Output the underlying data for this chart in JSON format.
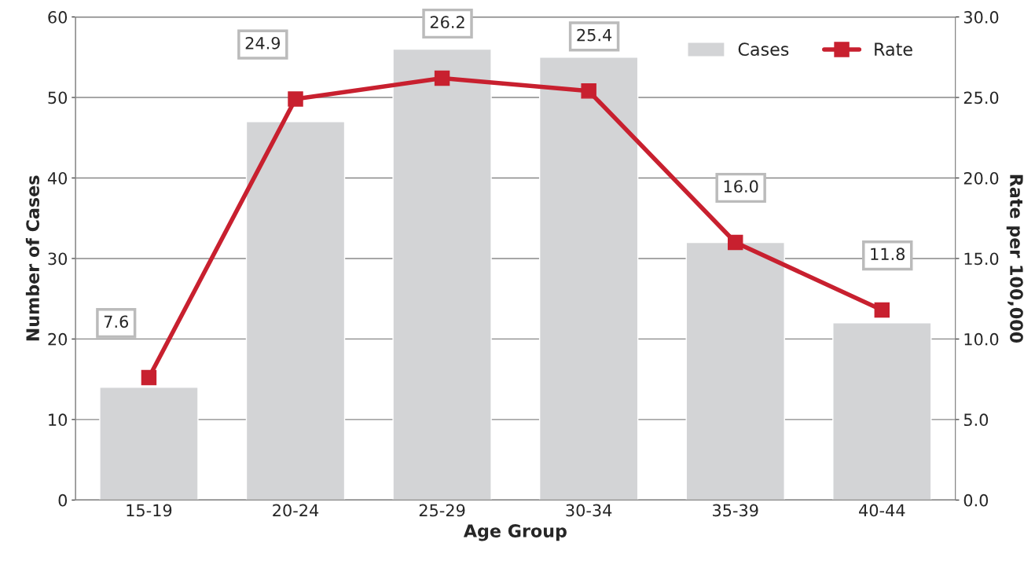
{
  "chart_data": {
    "type": "bar",
    "xlabel": "Age Group",
    "ylabel": "Number of Cases",
    "y2label": "Rate per 100,000",
    "categories": [
      "15-19",
      "20-24",
      "25-29",
      "30-34",
      "35-39",
      "40-44"
    ],
    "series": [
      {
        "name": "Cases",
        "color": "#d3d4d6",
        "values": [
          14,
          47,
          56,
          55,
          32,
          22
        ]
      },
      {
        "name": "Rate",
        "type": "line",
        "axis": "y2",
        "color": "#c8202f",
        "marker": "square",
        "line_style": "solid",
        "values": [
          7.6,
          24.9,
          26.2,
          25.4,
          16.0,
          11.8
        ],
        "value_labels": [
          "7.6",
          "24.9",
          "26.2",
          "25.4",
          "16.0",
          "11.8"
        ]
      }
    ],
    "ylim": [
      0,
      60
    ],
    "yticks": [
      0,
      10,
      20,
      30,
      40,
      50,
      60
    ],
    "y2lim": [
      0,
      30
    ],
    "y2ticks": [
      {
        "value": 0,
        "label": "0.0"
      },
      {
        "value": 5,
        "label": "5.0"
      },
      {
        "value": 10,
        "label": "10.0"
      },
      {
        "value": 15,
        "label": "15.0"
      },
      {
        "value": 20,
        "label": "20.0"
      },
      {
        "value": 25,
        "label": "25.0"
      },
      {
        "value": 30,
        "label": "30.0"
      }
    ],
    "grid": "y",
    "legend": "top right"
  }
}
